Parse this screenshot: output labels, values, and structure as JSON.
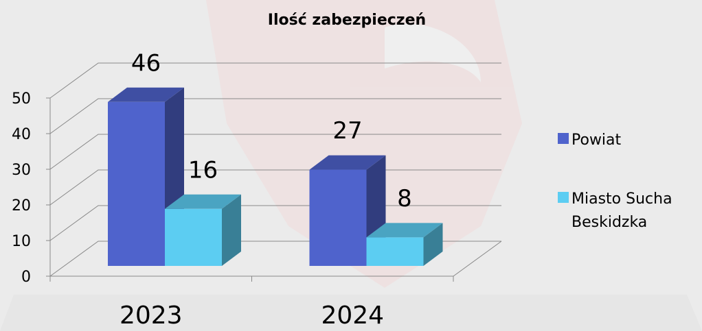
{
  "chart_data": {
    "type": "bar3d",
    "title": "Ilość zabezpieczeń",
    "categories": [
      "2023",
      "2024"
    ],
    "series": [
      {
        "name": "Powiat",
        "color": "#4f63cc",
        "values": [
          46,
          27
        ]
      },
      {
        "name": "Miasto Sucha Beskidzka",
        "color": "#5ccdf2",
        "values": [
          16,
          8
        ]
      }
    ],
    "ylim": [
      0,
      50
    ],
    "yticks": [
      0,
      10,
      20,
      30,
      40,
      50
    ],
    "grid": true,
    "legend": "right"
  }
}
